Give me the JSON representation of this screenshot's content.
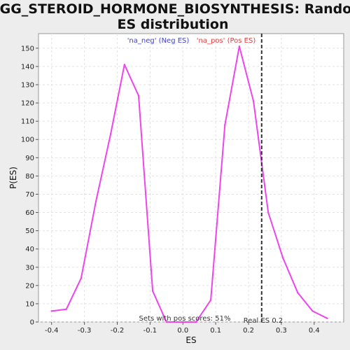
{
  "chart_data": {
    "type": "line",
    "title_line1": "KEGG_STEROID_HORMONE_BIOSYNTHESIS: Random",
    "title_line2": "ES distribution",
    "xlabel": "ES",
    "ylabel": "P(ES)",
    "xlim": [
      -0.44,
      0.49
    ],
    "ylim": [
      0,
      158
    ],
    "xticks": [
      -0.4,
      -0.3,
      -0.2,
      -0.1,
      0.0,
      0.1,
      0.2,
      0.3,
      0.4
    ],
    "xtick_labels": [
      "-0.4",
      "-0.3",
      "-0.2",
      "-0.1",
      "0.0",
      "0.1",
      "0.2",
      "0.3",
      "0.4"
    ],
    "yticks": [
      0,
      10,
      20,
      30,
      40,
      50,
      60,
      70,
      80,
      90,
      100,
      110,
      120,
      130,
      140,
      150
    ],
    "ytick_labels": [
      "0",
      "10",
      "20",
      "30",
      "40",
      "50",
      "60",
      "70",
      "80",
      "90",
      "100",
      "110",
      "120",
      "130",
      "140",
      "150"
    ],
    "grid": true,
    "legend": [
      {
        "label": "'na_neg' (Neg ES)",
        "color": "#4040d0"
      },
      {
        "label": "'na_pos' (Pos ES)",
        "color": "#e04040"
      }
    ],
    "series": [
      {
        "color": "#ee44ee",
        "x": [
          -0.4,
          -0.355,
          -0.31,
          -0.265,
          -0.22,
          -0.178,
          -0.135,
          -0.092,
          -0.05,
          -0.005,
          0.04,
          0.085,
          0.128,
          0.172,
          0.215,
          0.26,
          0.305,
          0.35,
          0.395,
          0.44
        ],
        "y": [
          6,
          7,
          24,
          66,
          103,
          141,
          124,
          17,
          0,
          0,
          0,
          12,
          108,
          151,
          121,
          60,
          35,
          16,
          6,
          2
        ]
      }
    ],
    "real_es": {
      "x": 0.24,
      "color": "#333333"
    },
    "annotations": {
      "pos_scores": "Sets with pos scores: 51%",
      "real_es": "Real ES 0.2"
    }
  }
}
